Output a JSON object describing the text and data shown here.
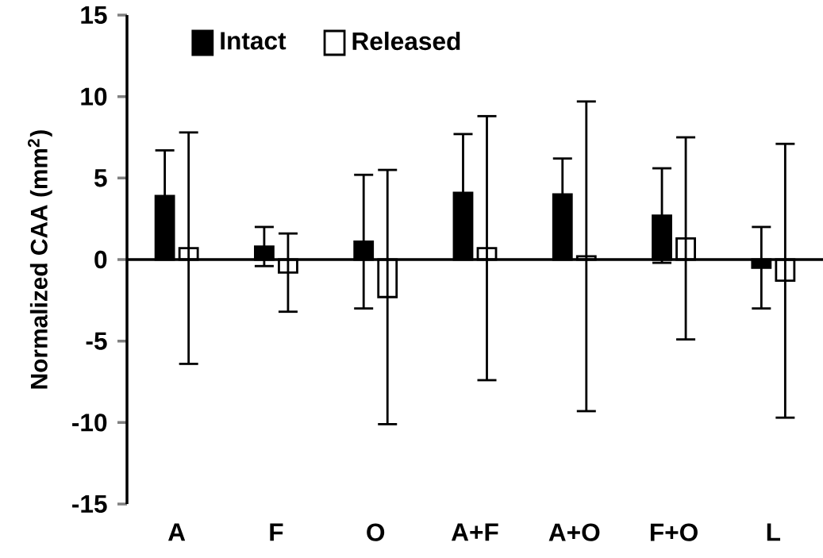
{
  "chart_data": {
    "type": "bar",
    "ylabel": "Normalized CAA (mm$^{2}$)",
    "categories": [
      "A",
      "F",
      "O",
      "A+F",
      "A+O",
      "F+O",
      "L"
    ],
    "series": [
      {
        "name": "Intact",
        "color": "#000000",
        "values": [
          3.9,
          0.8,
          1.1,
          4.1,
          4.0,
          2.7,
          -0.5
        ],
        "errors": [
          2.8,
          1.2,
          4.1,
          3.6,
          2.2,
          2.9,
          2.5
        ]
      },
      {
        "name": "Released",
        "color": "#ffffff",
        "values": [
          0.7,
          -0.8,
          -2.3,
          0.7,
          0.2,
          1.3,
          -1.3
        ],
        "errors": [
          7.1,
          2.4,
          7.8,
          8.1,
          9.5,
          6.2,
          8.4
        ]
      }
    ],
    "ylim": [
      -15,
      15
    ],
    "yticks": [
      -15,
      -10,
      -5,
      0,
      5,
      10,
      15
    ],
    "legend": "top left"
  }
}
